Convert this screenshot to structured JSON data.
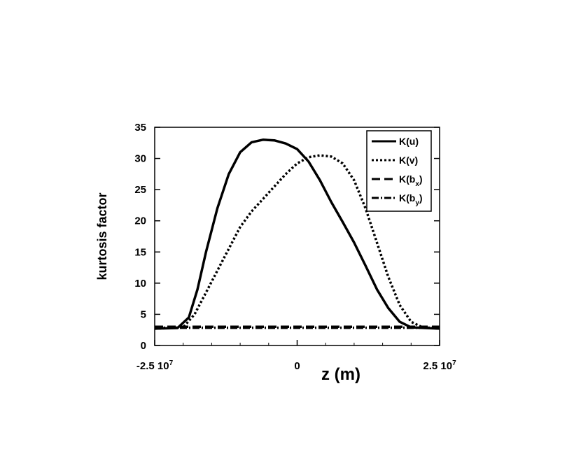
{
  "chart_data": {
    "type": "line",
    "title": "",
    "xlabel": "z (m)",
    "ylabel": "kurtosis factor",
    "xlim": [
      -25000000,
      25000000
    ],
    "ylim": [
      0,
      35
    ],
    "x_ticks": [
      {
        "value": -25000000,
        "label": "-2.5 10",
        "exp": "7"
      },
      {
        "value": 0,
        "label": "0",
        "exp": ""
      },
      {
        "value": 25000000,
        "label": "2.5 10",
        "exp": "7"
      }
    ],
    "y_ticks": [
      0,
      5,
      10,
      15,
      20,
      25,
      30,
      35
    ],
    "grid": false,
    "legend_position": "top-right",
    "series": [
      {
        "name": "K(u)",
        "legend_main": "K(u)",
        "legend_sub": "",
        "legend_tail": "",
        "style": "solid",
        "points": [
          [
            -25000000,
            2.7
          ],
          [
            -21000000,
            2.8
          ],
          [
            -19000000,
            4.5
          ],
          [
            -17500000,
            9.0
          ],
          [
            -16000000,
            15.0
          ],
          [
            -14000000,
            22.0
          ],
          [
            -12000000,
            27.5
          ],
          [
            -10000000,
            31.0
          ],
          [
            -8000000,
            32.6
          ],
          [
            -6000000,
            33.0
          ],
          [
            -4000000,
            32.9
          ],
          [
            -2000000,
            32.4
          ],
          [
            0,
            31.5
          ],
          [
            2000000,
            29.5
          ],
          [
            4000000,
            26.5
          ],
          [
            6000000,
            23.0
          ],
          [
            8000000,
            19.8
          ],
          [
            10000000,
            16.5
          ],
          [
            12000000,
            12.8
          ],
          [
            14000000,
            9.0
          ],
          [
            16000000,
            6.0
          ],
          [
            18000000,
            3.8
          ],
          [
            20000000,
            2.9
          ],
          [
            25000000,
            2.7
          ]
        ]
      },
      {
        "name": "K(v)",
        "legend_main": "K(v)",
        "legend_sub": "",
        "legend_tail": "",
        "style": "dotted",
        "points": [
          [
            -25000000,
            2.7
          ],
          [
            -20000000,
            2.9
          ],
          [
            -18000000,
            5.0
          ],
          [
            -16000000,
            8.5
          ],
          [
            -14000000,
            12.0
          ],
          [
            -12000000,
            15.5
          ],
          [
            -10000000,
            19.0
          ],
          [
            -8000000,
            21.5
          ],
          [
            -6000000,
            23.5
          ],
          [
            -4000000,
            25.5
          ],
          [
            -2000000,
            27.5
          ],
          [
            0,
            29.2
          ],
          [
            2000000,
            30.2
          ],
          [
            4000000,
            30.5
          ],
          [
            6000000,
            30.3
          ],
          [
            8000000,
            29.2
          ],
          [
            10000000,
            26.5
          ],
          [
            12000000,
            22.0
          ],
          [
            14000000,
            16.5
          ],
          [
            16000000,
            11.0
          ],
          [
            18000000,
            6.5
          ],
          [
            20000000,
            3.8
          ],
          [
            22000000,
            2.9
          ],
          [
            25000000,
            2.7
          ]
        ]
      },
      {
        "name": "K(bx)",
        "legend_main": "K(b",
        "legend_sub": "x",
        "legend_tail": ")",
        "style": "dashed",
        "points": [
          [
            -25000000,
            3.0
          ],
          [
            0,
            3.0
          ],
          [
            25000000,
            3.0
          ]
        ]
      },
      {
        "name": "K(by)",
        "legend_main": "K(b",
        "legend_sub": "y",
        "legend_tail": ")",
        "style": "dashdot",
        "points": [
          [
            -25000000,
            2.85
          ],
          [
            0,
            2.85
          ],
          [
            25000000,
            2.85
          ]
        ]
      }
    ]
  }
}
